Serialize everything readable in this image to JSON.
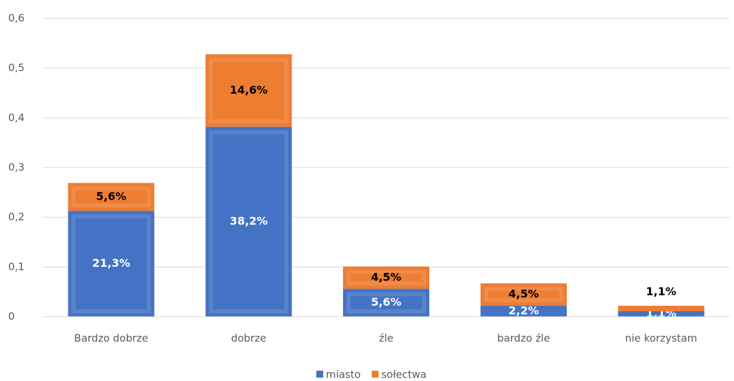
{
  "chart_data": {
    "type": "stacked_bar",
    "categories": [
      "Bardzo dobrze",
      "dobrze",
      "źle",
      "bardzo źle",
      "nie korzystam"
    ],
    "series": [
      {
        "name": "miasto",
        "color": "#4472c4",
        "label_color": "#ffffff",
        "values": [
          0.213,
          0.382,
          0.056,
          0.022,
          0.011
        ],
        "value_labels": [
          "21,3%",
          "38,2%",
          "5,6%",
          "2,2%",
          "1,1%"
        ]
      },
      {
        "name": "sołectwa",
        "color": "#ed7d31",
        "label_color": "#000000",
        "values": [
          0.056,
          0.146,
          0.045,
          0.045,
          0.011
        ],
        "value_labels": [
          "5,6%",
          "14,6%",
          "4,5%",
          "4,5%",
          "1,1%"
        ]
      }
    ],
    "ylim": [
      0,
      0.6
    ],
    "yticks": [
      0,
      {
        "value": 0.1,
        "label": "0,1"
      },
      {
        "value": 0.2,
        "label": "0,2"
      },
      {
        "value": 0.3,
        "label": "0,3"
      },
      {
        "value": 0.4,
        "label": "0,4"
      },
      {
        "value": 0.5,
        "label": "0,5"
      },
      {
        "value": 0.6,
        "label": "0,6"
      }
    ],
    "grid": true,
    "legend": "bottom"
  }
}
